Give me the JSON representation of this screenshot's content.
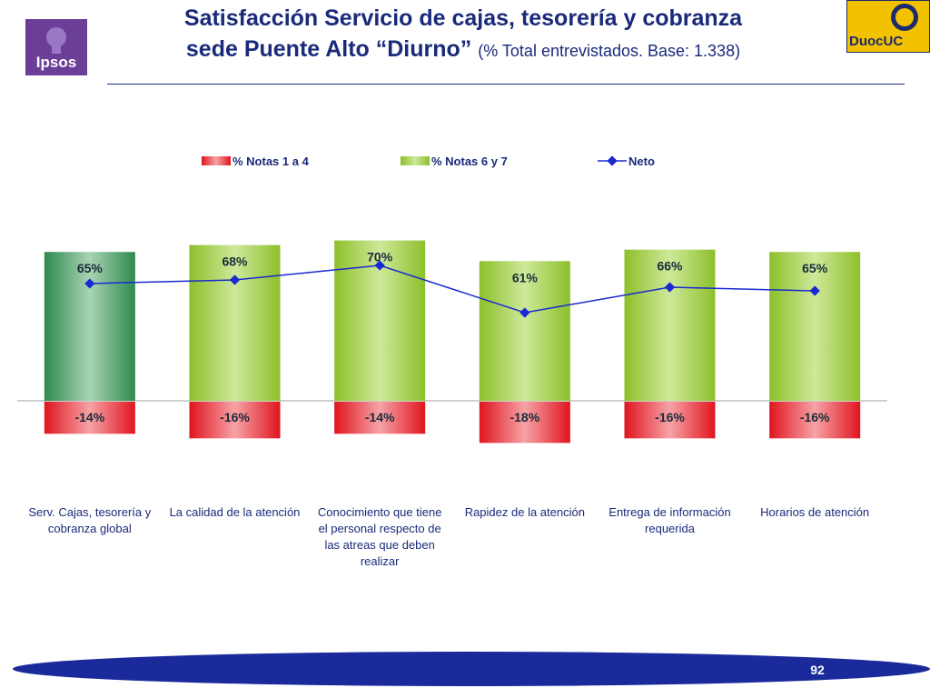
{
  "header": {
    "title_line1": "Satisfacción Servicio de cajas, tesorería y cobranza",
    "title_line2": "sede Puente Alto “Diurno”",
    "subtitle": "(% Total entrevistados. Base: 1.338)"
  },
  "logos": {
    "left": "Ipsos",
    "right": "DuocUC"
  },
  "colors": {
    "title": "#1a2a7a",
    "green_bar": "#9ccc3c",
    "global_bar": "#3a9a5c",
    "red_bar": "#e8202a",
    "neto_line": "#1a2ad0",
    "footer_band": "#1a2a9a"
  },
  "footer": {
    "page_number": "92"
  },
  "chart_data": {
    "type": "bar",
    "categories": [
      [
        "Serv. Cajas, tesorería y",
        "cobranza global"
      ],
      [
        "La calidad de la atención"
      ],
      [
        "Conocimiento que tiene",
        "el personal respecto de",
        "las atreas que deben",
        "realizar"
      ],
      [
        "Rapidez de la atención"
      ],
      [
        "Entrega de información",
        "requerida"
      ],
      [
        "Horarios de atención"
      ]
    ],
    "series": [
      {
        "name": "% Notas 1 a 4",
        "values": [
          -14,
          -16,
          -14,
          -18,
          -16,
          -16
        ],
        "labels": [
          "-14%",
          "-16%",
          "-14%",
          "-18%",
          "-16%",
          "-16%"
        ]
      },
      {
        "name": "% Notas 6 y 7",
        "values": [
          65,
          68,
          70,
          61,
          66,
          65
        ],
        "labels": [
          "65%",
          "68%",
          "70%",
          "61%",
          "66%",
          "65%"
        ]
      },
      {
        "name": "Neto",
        "type": "line",
        "values": [
          51,
          52,
          56,
          43,
          50,
          49
        ]
      }
    ],
    "legend_position": "top",
    "ylim": [
      -20,
      75
    ]
  }
}
